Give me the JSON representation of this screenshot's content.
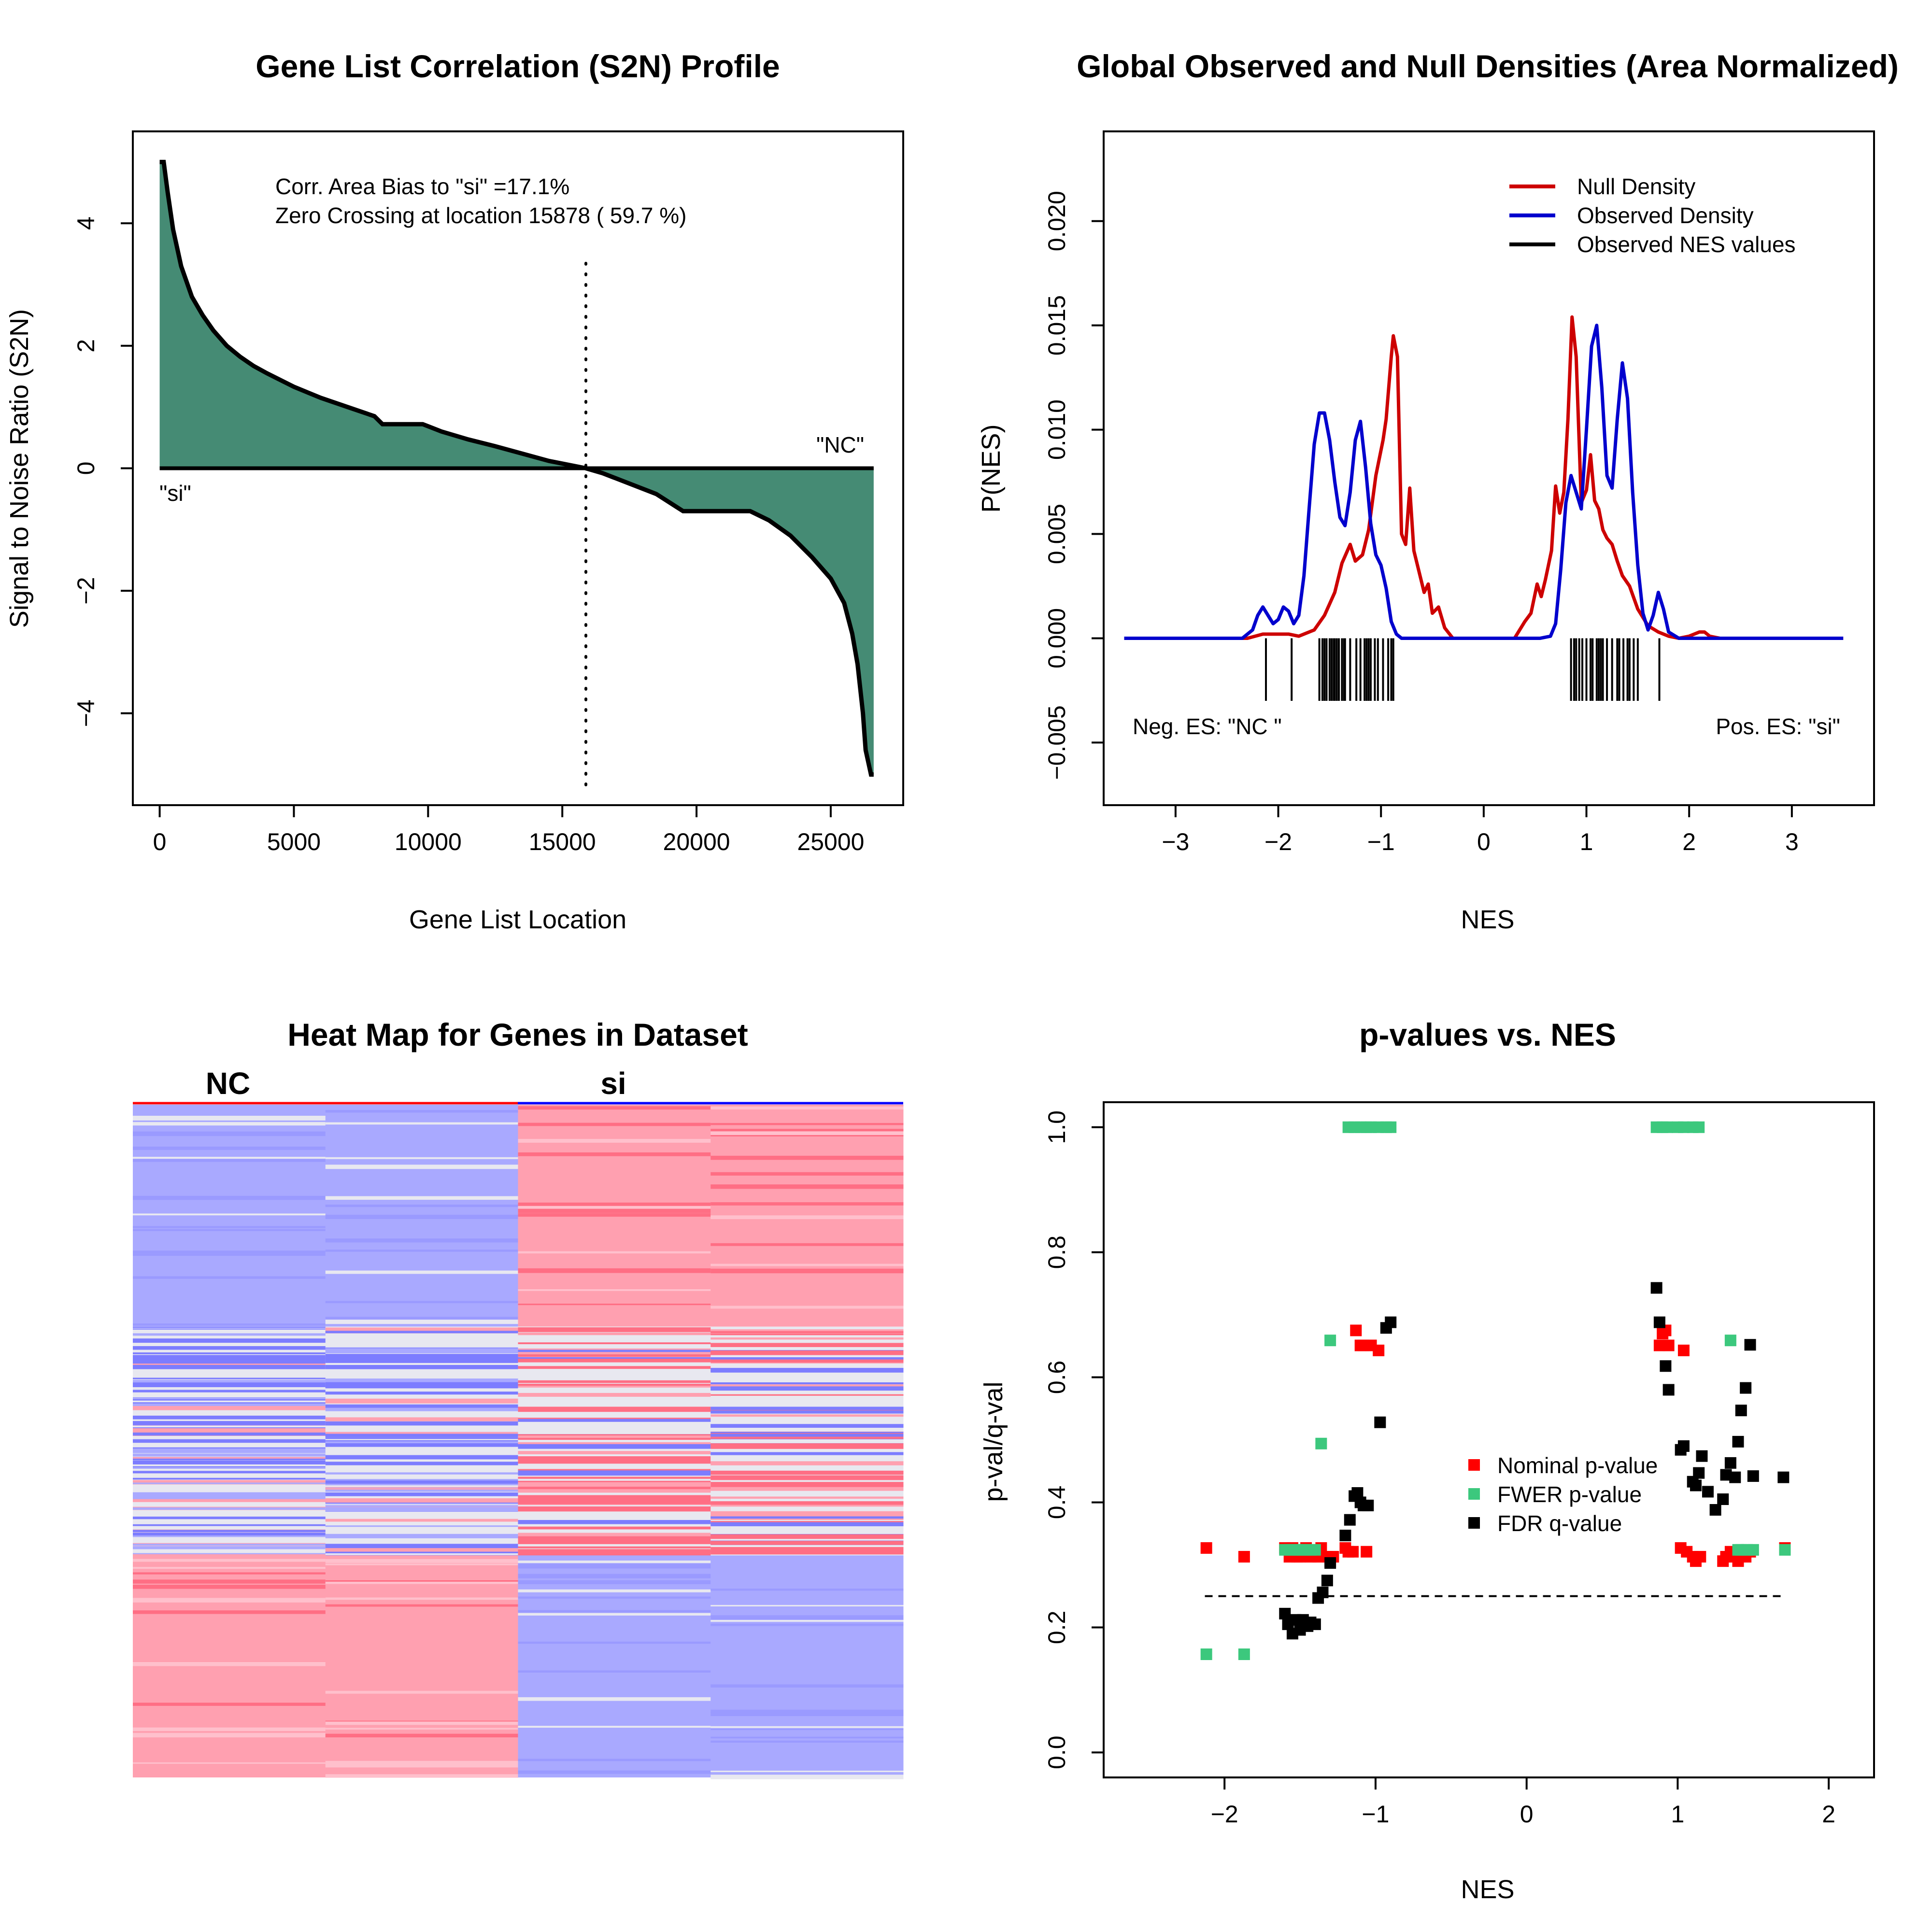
{
  "panel1": {
    "title": "Gene List Correlation (S2N) Profile",
    "xlabel": "Gene List Location",
    "ylabel": "Signal to Noise Ratio (S2N)",
    "annotation_line1": "Corr. Area Bias to \"si\" =17.1%",
    "annotation_line2": "Zero Crossing at location  15878  ( 59.7  %)",
    "label_left": "\"si\"",
    "label_right": "\"NC\"",
    "fill_color": "#458B74"
  },
  "panel2": {
    "title": "Global Observed and Null Densities (Area Normalized)",
    "xlabel": "NES",
    "ylabel": "P(NES)",
    "neg_label": "Neg. ES: \"NC \"",
    "pos_label": "Pos. ES: \"si\"",
    "legend": [
      {
        "label": "Null Density",
        "color": "#CD0000"
      },
      {
        "label": "Observed Density",
        "color": "#0000CD"
      },
      {
        "label": "Observed NES values",
        "color": "#000000"
      }
    ]
  },
  "panel3": {
    "title": "Heat Map for Genes in Dataset",
    "groups": [
      {
        "label": "NC",
        "color": "#FF0000"
      },
      {
        "label": "si",
        "color": "#0000FF"
      }
    ],
    "colors": {
      "high": "#FFA0B0",
      "low": "#A9A9FF",
      "mid": "#E8E8F0",
      "strong_high": "#FF6E84",
      "strong_low": "#7C7CFF"
    }
  },
  "panel4": {
    "title": "p-values vs. NES",
    "xlabel": "NES",
    "ylabel": "p-val/q-val",
    "legend": [
      {
        "label": "Nominal p-value",
        "color": "#FF0000"
      },
      {
        "label": "FWER p-value",
        "color": "#3CC87D"
      },
      {
        "label": "FDR q-value",
        "color": "#000000"
      }
    ]
  },
  "chart_data": [
    {
      "type": "area",
      "title": "Gene List Correlation (S2N) Profile",
      "xlabel": "Gene List Location",
      "ylabel": "Signal to Noise Ratio (S2N)",
      "xlim": [
        -1000,
        27700
      ],
      "ylim": [
        -5.5,
        5.5
      ],
      "x_ticks": [
        0,
        5000,
        10000,
        15000,
        20000,
        25000
      ],
      "y_ticks": [
        -4,
        -2,
        0,
        2,
        4
      ],
      "x": [
        0,
        150,
        300,
        500,
        800,
        1200,
        1600,
        2000,
        2500,
        3000,
        3500,
        4000,
        5000,
        6000,
        7000,
        8000,
        8300,
        9000,
        9800,
        10500,
        11500,
        12500,
        13500,
        14500,
        15878,
        16500,
        17500,
        18500,
        19500,
        20500,
        21500,
        22000,
        22700,
        23500,
        24300,
        25000,
        25500,
        25800,
        26000,
        26100,
        26200,
        26300,
        26500,
        26600
      ],
      "values": [
        5.0,
        5.0,
        4.5,
        3.9,
        3.3,
        2.8,
        2.5,
        2.25,
        2.0,
        1.82,
        1.67,
        1.55,
        1.33,
        1.15,
        1.0,
        0.85,
        0.72,
        0.72,
        0.72,
        0.6,
        0.47,
        0.36,
        0.24,
        0.12,
        0.0,
        -0.08,
        -0.25,
        -0.42,
        -0.7,
        -0.7,
        -0.7,
        -0.7,
        -0.85,
        -1.1,
        -1.45,
        -1.8,
        -2.2,
        -2.7,
        -3.2,
        -3.6,
        -4.0,
        -4.6,
        -5.0,
        -5.0
      ],
      "zero_crossing": 15878
    },
    {
      "type": "line",
      "title": "Global Observed and Null Densities (Area Normalized)",
      "xlabel": "NES",
      "ylabel": "P(NES)",
      "xlim": [
        -3.7,
        3.8
      ],
      "ylim": [
        -0.008,
        0.0243
      ],
      "x_ticks": [
        -3,
        -2,
        -1,
        0,
        1,
        2,
        3
      ],
      "y_ticks": [
        -0.005,
        0.0,
        0.005,
        0.01,
        0.015,
        0.02
      ],
      "series": [
        {
          "name": "Null Density",
          "x": [
            -3.5,
            -2.3,
            -2.15,
            -2.05,
            -1.9,
            -1.8,
            -1.65,
            -1.55,
            -1.45,
            -1.38,
            -1.3,
            -1.25,
            -1.18,
            -1.12,
            -1.05,
            -0.98,
            -0.95,
            -0.9,
            -0.88,
            -0.84,
            -0.8,
            -0.76,
            -0.72,
            -0.68,
            -0.62,
            -0.58,
            -0.54,
            -0.5,
            -0.44,
            -0.38,
            -0.3,
            0.3,
            0.4,
            0.46,
            0.52,
            0.56,
            0.6,
            0.66,
            0.7,
            0.74,
            0.78,
            0.82,
            0.86,
            0.9,
            0.95,
            1.0,
            1.04,
            1.08,
            1.12,
            1.16,
            1.2,
            1.25,
            1.3,
            1.35,
            1.42,
            1.5,
            1.6,
            1.7,
            1.8,
            1.9,
            2.0,
            2.1,
            2.15,
            2.2,
            2.3,
            3.5
          ],
          "values": [
            0.0,
            0.0,
            0.0002,
            0.0002,
            0.0002,
            0.0001,
            0.0004,
            0.0011,
            0.0022,
            0.0036,
            0.0045,
            0.0037,
            0.004,
            0.0052,
            0.0078,
            0.0095,
            0.0105,
            0.0135,
            0.0145,
            0.0135,
            0.005,
            0.0045,
            0.0072,
            0.0042,
            0.003,
            0.0022,
            0.0026,
            0.0012,
            0.0015,
            0.0005,
            0.0,
            0.0,
            0.0008,
            0.0012,
            0.0026,
            0.002,
            0.0028,
            0.0042,
            0.0073,
            0.006,
            0.007,
            0.0105,
            0.0154,
            0.0135,
            0.0065,
            0.0071,
            0.0088,
            0.0066,
            0.0062,
            0.0052,
            0.0048,
            0.0045,
            0.0037,
            0.003,
            0.0025,
            0.0014,
            0.0006,
            0.0003,
            0.0001,
            0.0,
            0.0001,
            0.0003,
            0.0003,
            0.0001,
            0.0,
            0.0
          ]
        },
        {
          "name": "Observed Density",
          "x": [
            -3.5,
            -2.35,
            -2.25,
            -2.2,
            -2.15,
            -2.1,
            -2.05,
            -2.0,
            -1.95,
            -1.9,
            -1.85,
            -1.8,
            -1.75,
            -1.7,
            -1.65,
            -1.6,
            -1.55,
            -1.5,
            -1.45,
            -1.4,
            -1.35,
            -1.3,
            -1.25,
            -1.2,
            -1.15,
            -1.1,
            -1.05,
            -1.0,
            -0.95,
            -0.9,
            -0.85,
            -0.8,
            -0.75,
            -0.7,
            -0.6,
            0.55,
            0.65,
            0.7,
            0.75,
            0.8,
            0.85,
            0.9,
            0.95,
            1.0,
            1.05,
            1.1,
            1.15,
            1.2,
            1.25,
            1.3,
            1.35,
            1.4,
            1.45,
            1.5,
            1.55,
            1.6,
            1.65,
            1.7,
            1.75,
            1.8,
            1.9,
            3.5
          ],
          "values": [
            0.0,
            0.0,
            0.0004,
            0.0011,
            0.0015,
            0.0011,
            0.0007,
            0.0009,
            0.0015,
            0.0013,
            0.0007,
            0.0011,
            0.003,
            0.0062,
            0.0093,
            0.0108,
            0.0108,
            0.0095,
            0.0075,
            0.0058,
            0.0054,
            0.007,
            0.0095,
            0.0104,
            0.0082,
            0.0055,
            0.004,
            0.0035,
            0.0024,
            0.0008,
            0.0002,
            0.0,
            0.0,
            0.0,
            0.0,
            0.0,
            0.0001,
            0.0007,
            0.0033,
            0.0065,
            0.0078,
            0.007,
            0.0062,
            0.01,
            0.014,
            0.015,
            0.012,
            0.0078,
            0.0072,
            0.0105,
            0.0132,
            0.0115,
            0.007,
            0.0035,
            0.0012,
            0.0004,
            0.0011,
            0.0022,
            0.0014,
            0.0003,
            0.0,
            0.0
          ]
        }
      ],
      "observed_nes_ticks": [
        -2.12,
        -1.87,
        -1.6,
        -1.57,
        -1.55,
        -1.53,
        -1.5,
        -1.48,
        -1.46,
        -1.45,
        -1.43,
        -1.41,
        -1.38,
        -1.36,
        -1.35,
        -1.3,
        -1.24,
        -1.2,
        -1.16,
        -1.14,
        -1.12,
        -1.1,
        -1.06,
        -1.03,
        -0.98,
        -0.93,
        -0.9,
        -0.88,
        0.85,
        0.88,
        0.9,
        0.93,
        0.96,
        1.0,
        1.04,
        1.06,
        1.1,
        1.12,
        1.14,
        1.16,
        1.2,
        1.25,
        1.3,
        1.32,
        1.36,
        1.4,
        1.42,
        1.46,
        1.5,
        1.71
      ]
    },
    {
      "type": "heatmap",
      "title": "Heat Map for Genes in Dataset",
      "columns": [
        "NC",
        "NC",
        "si",
        "si"
      ],
      "bands": [
        {
          "from": 0.0,
          "to": 0.33,
          "values": [
            -1,
            -1,
            1,
            1
          ]
        },
        {
          "from": 0.33,
          "to": 0.67,
          "values": [
            -0.4,
            -0.6,
            0.6,
            0.5
          ]
        },
        {
          "from": 0.67,
          "to": 1.0,
          "values": [
            1,
            1,
            -1,
            -1
          ]
        }
      ]
    },
    {
      "type": "scatter",
      "title": "p-values vs. NES",
      "xlabel": "NES",
      "ylabel": "p-val/q-val",
      "xlim": [
        -2.8,
        2.3
      ],
      "ylim": [
        -0.04,
        1.04
      ],
      "x_ticks": [
        -2,
        -1,
        0,
        1,
        2
      ],
      "y_ticks": [
        0.0,
        0.2,
        0.4,
        0.6,
        0.8,
        1.0
      ],
      "threshold": 0.25,
      "threshold_x": [
        -2.13,
        1.71
      ],
      "series": [
        {
          "name": "Nominal p-value",
          "x": [
            -2.12,
            -1.87,
            -1.6,
            -1.57,
            -1.55,
            -1.52,
            -1.5,
            -1.46,
            -1.43,
            -1.38,
            -1.36,
            -1.32,
            -1.3,
            -1.28,
            -1.2,
            -1.18,
            -1.15,
            -1.13,
            -1.1,
            -1.08,
            -1.06,
            -1.03,
            -0.98,
            0.88,
            0.9,
            0.92,
            0.94,
            1.02,
            1.04,
            1.06,
            1.1,
            1.12,
            1.15,
            1.3,
            1.32,
            1.35,
            1.38,
            1.4,
            1.45,
            1.48,
            1.71
          ],
          "y": [
            0.327,
            0.313,
            0.327,
            0.313,
            0.327,
            0.313,
            0.313,
            0.327,
            0.313,
            0.313,
            0.327,
            0.313,
            0.306,
            0.313,
            0.327,
            0.321,
            0.321,
            0.675,
            0.651,
            0.651,
            0.321,
            0.651,
            0.643,
            0.651,
            0.67,
            0.675,
            0.651,
            0.327,
            0.643,
            0.321,
            0.313,
            0.306,
            0.313,
            0.306,
            0.313,
            0.321,
            0.313,
            0.306,
            0.313,
            0.321,
            0.327
          ],
          "color": "#FF0000"
        },
        {
          "name": "FWER p-value",
          "x": [
            -2.12,
            -1.87,
            -1.6,
            -1.57,
            -1.55,
            -1.52,
            -1.5,
            -1.48,
            -1.46,
            -1.43,
            -1.4,
            -1.36,
            -1.3,
            -1.18,
            -1.14,
            -1.1,
            -1.06,
            -1.03,
            -0.98,
            -0.93,
            -0.9,
            0.86,
            0.9,
            0.93,
            1.0,
            1.04,
            1.1,
            1.14,
            1.35,
            1.4,
            1.42,
            1.46,
            1.5,
            1.71
          ],
          "y": [
            0.157,
            0.157,
            0.324,
            0.324,
            0.324,
            0.324,
            0.324,
            0.324,
            0.324,
            0.324,
            0.324,
            0.494,
            0.659,
            1.0,
            1.0,
            1.0,
            1.0,
            1.0,
            1.0,
            1.0,
            1.0,
            1.0,
            1.0,
            1.0,
            1.0,
            1.0,
            1.0,
            1.0,
            0.659,
            0.324,
            0.324,
            0.324,
            0.324,
            0.324
          ],
          "color": "#3CC87D"
        },
        {
          "name": "FDR q-value",
          "x": [
            -1.6,
            -1.58,
            -1.55,
            -1.53,
            -1.5,
            -1.48,
            -1.45,
            -1.43,
            -1.4,
            -1.38,
            -1.35,
            -1.32,
            -1.3,
            -1.2,
            -1.17,
            -1.14,
            -1.12,
            -1.1,
            -1.08,
            -1.05,
            -0.97,
            -0.93,
            -0.9,
            0.86,
            0.88,
            0.92,
            0.94,
            1.02,
            1.04,
            1.1,
            1.12,
            1.14,
            1.16,
            1.2,
            1.25,
            1.3,
            1.32,
            1.35,
            1.38,
            1.4,
            1.42,
            1.45,
            1.48,
            1.5,
            1.7
          ],
          "y": [
            0.222,
            0.205,
            0.19,
            0.212,
            0.196,
            0.212,
            0.202,
            0.208,
            0.205,
            0.247,
            0.256,
            0.275,
            0.303,
            0.347,
            0.372,
            0.41,
            0.415,
            0.4,
            0.395,
            0.395,
            0.528,
            0.679,
            0.688,
            0.743,
            0.688,
            0.618,
            0.58,
            0.484,
            0.49,
            0.433,
            0.427,
            0.447,
            0.474,
            0.417,
            0.388,
            0.405,
            0.444,
            0.463,
            0.44,
            0.497,
            0.547,
            0.583,
            0.652,
            0.442,
            0.44
          ],
          "color": "#000000"
        }
      ]
    }
  ]
}
